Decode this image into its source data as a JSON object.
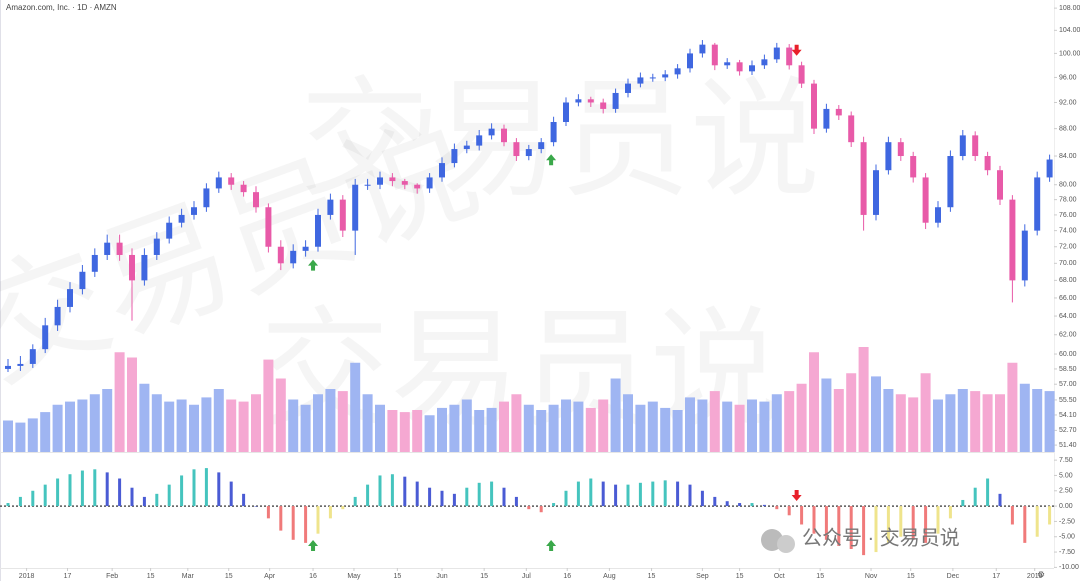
{
  "chart_data": {
    "type": "candlestick",
    "title": "Amazon.com, Inc. · 1D · AMZN",
    "watermark": "交易员说",
    "logo": "公众号 · 交易员说",
    "open": [
      58.5,
      58.8,
      59,
      60.5,
      63,
      65,
      67,
      69,
      71,
      72.5,
      71,
      68,
      71,
      73,
      75,
      76,
      77,
      79.5,
      81,
      80,
      79,
      77,
      72,
      70,
      71.5,
      72,
      76,
      78,
      74,
      80,
      80,
      81,
      80.5,
      80,
      79.5,
      81,
      83,
      85,
      85.5,
      87,
      88,
      86,
      84,
      85,
      86,
      89,
      92,
      92.5,
      92,
      91,
      93.5,
      95,
      96,
      96,
      96.5,
      97.5,
      100,
      101.5,
      98,
      98.5,
      97,
      98,
      99,
      101,
      98,
      95,
      88,
      91,
      90,
      86,
      76,
      82,
      86,
      84,
      81,
      75,
      77,
      84,
      87,
      84,
      82,
      78,
      68,
      74,
      81
    ],
    "high": [
      59.5,
      59.8,
      61,
      63.8,
      65.8,
      67.8,
      69.8,
      71.8,
      73.5,
      73.5,
      71.8,
      71.8,
      73.8,
      75.8,
      76.8,
      77.8,
      80.2,
      81.8,
      81.6,
      80.5,
      79.8,
      77.5,
      72.8,
      72.3,
      72.8,
      76.8,
      78.8,
      78.6,
      80.8,
      80.8,
      81.8,
      81.6,
      80.8,
      80.2,
      81.6,
      83.8,
      85.8,
      86.2,
      87.8,
      88.8,
      88.6,
      86.6,
      85.6,
      86.6,
      89.8,
      92.8,
      93.3,
      92.9,
      92.6,
      94.2,
      95.8,
      96.8,
      96.6,
      97.2,
      98.2,
      100.8,
      102.3,
      101.8,
      99.2,
      98.9,
      98.8,
      99.8,
      101.8,
      101.6,
      98.6,
      95.6,
      91.8,
      91.6,
      90.6,
      86.8,
      82.8,
      86.8,
      86.6,
      84.6,
      81.6,
      77.8,
      84.8,
      87.8,
      87.6,
      84.6,
      82.6,
      78.6,
      74.8,
      81.8,
      84.2
    ],
    "low": [
      58.2,
      58.3,
      58.6,
      60.1,
      62.4,
      64.4,
      66.4,
      68.4,
      70.4,
      70.3,
      63.5,
      67.4,
      70.4,
      72.4,
      74.4,
      75.4,
      76.4,
      78.9,
      79.3,
      78.4,
      76.3,
      71.3,
      69.2,
      69.4,
      70.8,
      71.4,
      75.4,
      73.2,
      71,
      79.3,
      79.4,
      79.8,
      79.4,
      78.8,
      78.9,
      80.4,
      82.4,
      84.4,
      84.8,
      86.4,
      85.4,
      83.3,
      83.4,
      84.4,
      85.4,
      88.4,
      91.4,
      91.3,
      90.3,
      90.4,
      92.8,
      94.4,
      95.3,
      95.4,
      95.8,
      96.8,
      99.3,
      97.2,
      97.4,
      96.3,
      96.4,
      97.4,
      98.4,
      97.3,
      94.3,
      87.2,
      87.4,
      89.3,
      85.3,
      74,
      75.3,
      81.4,
      83.3,
      80.3,
      74.2,
      74.4,
      76.4,
      83.4,
      83.3,
      81.3,
      77.3,
      65.5,
      67.3,
      73.4,
      80.4
    ],
    "close": [
      58.8,
      59,
      60.5,
      63,
      65,
      67,
      69,
      71,
      72.5,
      71,
      68,
      71,
      73,
      75,
      76,
      77,
      79.5,
      81,
      80,
      79,
      77,
      72,
      70,
      71.5,
      72,
      76,
      78,
      74,
      80,
      80,
      81,
      80.5,
      80,
      79.5,
      81,
      83,
      85,
      85.5,
      87,
      88,
      86,
      84,
      85,
      86,
      89,
      92,
      92.5,
      92,
      91,
      93.5,
      95,
      96,
      96,
      96.5,
      97.5,
      100,
      101.5,
      98,
      98.5,
      97,
      98,
      99,
      101,
      98,
      95,
      88,
      91,
      90,
      86,
      76,
      82,
      86,
      84,
      81,
      75,
      77,
      84,
      87,
      84,
      82,
      78,
      68,
      74,
      81,
      83.5
    ],
    "up_color": "#3f67e0",
    "down_color": "#e85aa8",
    "ylim": [
      50.8,
      109.5
    ],
    "log_scale": true,
    "yticks": [
      {
        "value": 108,
        "label": "108.00"
      },
      {
        "value": 104,
        "label": "104.00"
      },
      {
        "value": 100,
        "label": "100.00"
      },
      {
        "value": 96,
        "label": "96.00"
      },
      {
        "value": 92,
        "label": "92.00"
      },
      {
        "value": 88,
        "label": "88.00"
      },
      {
        "value": 84,
        "label": "84.00"
      },
      {
        "value": 80,
        "label": "80.00"
      },
      {
        "value": 78,
        "label": "78.00"
      },
      {
        "value": 76,
        "label": "76.00"
      },
      {
        "value": 74,
        "label": "74.00"
      },
      {
        "value": 72,
        "label": "72.00"
      },
      {
        "value": 70,
        "label": "70.00"
      },
      {
        "value": 68,
        "label": "68.00"
      },
      {
        "value": 66,
        "label": "66.00"
      },
      {
        "value": 64,
        "label": "64.00"
      },
      {
        "value": 62,
        "label": "62.00"
      },
      {
        "value": 60,
        "label": "60.00"
      },
      {
        "value": 58.5,
        "label": "58.50"
      },
      {
        "value": 57,
        "label": "57.00"
      },
      {
        "value": 55.5,
        "label": "55.50"
      },
      {
        "value": 54.1,
        "label": "54.10"
      },
      {
        "value": 52.7,
        "label": "52.70"
      },
      {
        "value": 51.4,
        "label": "51.40"
      }
    ],
    "xticks": [
      {
        "value": 1.5,
        "label": "2018"
      },
      {
        "value": 4.8,
        "label": "17"
      },
      {
        "value": 8.4,
        "label": "Feb"
      },
      {
        "value": 11.5,
        "label": "15"
      },
      {
        "value": 14.5,
        "label": "Mar"
      },
      {
        "value": 17.8,
        "label": "15"
      },
      {
        "value": 21.1,
        "label": "Apr"
      },
      {
        "value": 24.6,
        "label": "16"
      },
      {
        "value": 27.9,
        "label": "May"
      },
      {
        "value": 31.4,
        "label": "15"
      },
      {
        "value": 35,
        "label": "Jun"
      },
      {
        "value": 38.4,
        "label": "15"
      },
      {
        "value": 41.8,
        "label": "Jul"
      },
      {
        "value": 45.1,
        "label": "16"
      },
      {
        "value": 48.5,
        "label": "Aug"
      },
      {
        "value": 51.9,
        "label": "15"
      },
      {
        "value": 56,
        "label": "Sep"
      },
      {
        "value": 59,
        "label": "15"
      },
      {
        "value": 62.2,
        "label": "Oct"
      },
      {
        "value": 65.5,
        "label": "15"
      },
      {
        "value": 69.6,
        "label": "Nov"
      },
      {
        "value": 72.8,
        "label": "15"
      },
      {
        "value": 76.2,
        "label": "Dec"
      },
      {
        "value": 79.7,
        "label": "17"
      },
      {
        "value": 82.8,
        "label": "2019"
      }
    ],
    "volume": {
      "values": [
        30,
        28,
        32,
        38,
        45,
        48,
        50,
        55,
        60,
        95,
        90,
        65,
        55,
        48,
        50,
        45,
        52,
        60,
        50,
        48,
        55,
        88,
        70,
        50,
        45,
        55,
        60,
        58,
        85,
        55,
        45,
        40,
        38,
        40,
        35,
        42,
        45,
        50,
        40,
        42,
        48,
        55,
        45,
        40,
        45,
        50,
        48,
        42,
        50,
        70,
        55,
        45,
        48,
        42,
        40,
        52,
        50,
        58,
        48,
        45,
        50,
        48,
        55,
        58,
        65,
        95,
        70,
        60,
        75,
        100,
        72,
        60,
        55,
        52,
        75,
        50,
        55,
        60,
        58,
        55,
        55,
        85,
        65,
        60,
        58
      ],
      "up_color": "#9fb5f2",
      "down_color": "#f5a8d2"
    },
    "oscillator": {
      "values": [
        0.5,
        1.5,
        2.5,
        3.5,
        4.5,
        5.2,
        5.8,
        6,
        5.5,
        4.5,
        3,
        1.5,
        2,
        3.5,
        5,
        6,
        6.2,
        5.5,
        4,
        2,
        0,
        -2,
        -4,
        -5.5,
        -6,
        -4.5,
        -2,
        -0.5,
        1.5,
        3.5,
        5,
        5.2,
        4.8,
        4,
        3,
        2.5,
        2,
        3,
        3.8,
        4,
        3,
        1.5,
        -0.5,
        -1,
        0.5,
        2.5,
        4,
        4.5,
        4,
        3.5,
        3.5,
        3.8,
        4,
        4.2,
        4,
        3.5,
        2.5,
        1.5,
        0.8,
        0.5,
        0.5,
        0.2,
        -0.5,
        -1.5,
        -3,
        -4.5,
        -5.5,
        -6.5,
        -7,
        -8,
        -7.5,
        -6,
        -5,
        -5.5,
        -6,
        -4.5,
        -2,
        1,
        3,
        4.5,
        2,
        -3,
        -6,
        -5,
        -3
      ],
      "ylim": [
        -10.1,
        8.5
      ],
      "yticks": [
        {
          "value": 7.5,
          "label": "7.50"
        },
        {
          "value": 5,
          "label": "5.00"
        },
        {
          "value": 2.5,
          "label": "2.50"
        },
        {
          "value": 0,
          "label": "0.00"
        },
        {
          "value": -2.5,
          "label": "-2.50"
        },
        {
          "value": -5,
          "label": "-5.00"
        },
        {
          "value": -7.5,
          "label": "-7.50"
        },
        {
          "value": -10,
          "label": "-10.00"
        }
      ],
      "colors": {
        "pos_up": "#45c4be",
        "pos_down": "#4a5bd4",
        "neg_down": "#f07a7a",
        "neg_up": "#efe48c"
      }
    },
    "signals": {
      "up": [
        24.6,
        43.8
      ],
      "down": [
        63.6
      ],
      "up_color": "#3aa84a",
      "down_color": "#e8202a"
    }
  }
}
